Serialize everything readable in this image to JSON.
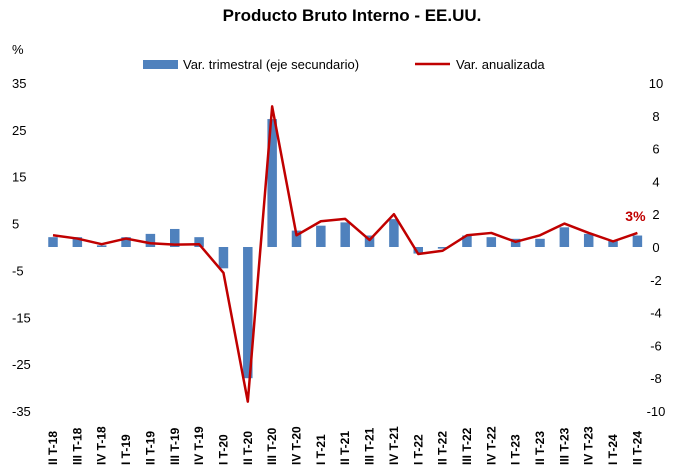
{
  "chart_data": {
    "type": "bar+line",
    "title": "Producto Bruto Interno - EE.UU.",
    "y_left_unit": "%",
    "y_left_ticks": [
      35,
      25,
      15,
      5,
      -5,
      -15,
      -25,
      -35
    ],
    "y_left_range": [
      -35,
      35
    ],
    "y_right_ticks": [
      10,
      8,
      6,
      4,
      2,
      0,
      -2,
      -4,
      -6,
      -8,
      -10
    ],
    "y_right_range": [
      -10,
      10
    ],
    "categories": [
      "II T-18",
      "III T-18",
      "IV T-18",
      "I T-19",
      "II T-19",
      "III T-19",
      "IV T-19",
      "I T-20",
      "II T-20",
      "III T-20",
      "IV T-20",
      "I T-21",
      "II T-21",
      "III T-21",
      "IV T-21",
      "I T-22",
      "II T-22",
      "III T-22",
      "IV T-22",
      "I T-23",
      "II T-23",
      "III T-23",
      "IV T-23",
      "I T-24",
      "II T-24"
    ],
    "series": [
      {
        "name": "Var. trimestral (eje secundario)",
        "type": "bar",
        "axis": "right",
        "color": "#4f81bd",
        "values": [
          0.6,
          0.6,
          0.1,
          0.6,
          0.8,
          1.1,
          0.6,
          -1.3,
          -8.0,
          7.8,
          1.0,
          1.3,
          1.5,
          0.7,
          1.7,
          -0.4,
          -0.1,
          0.7,
          0.6,
          0.5,
          0.5,
          1.2,
          0.8,
          0.4,
          0.7
        ]
      },
      {
        "name": "Var. anualizada",
        "type": "line",
        "axis": "left",
        "color": "#c00000",
        "values": [
          2.5,
          1.8,
          0.6,
          1.8,
          0.8,
          0.5,
          0.6,
          -5.5,
          -33.0,
          30.0,
          2.5,
          5.5,
          6.0,
          1.5,
          7.0,
          -1.5,
          -0.8,
          2.5,
          3.0,
          1.1,
          2.5,
          5.0,
          3.0,
          1.2,
          3.0
        ]
      }
    ],
    "annotation": {
      "text": "3%",
      "category": "II T-24",
      "color": "#c00000"
    },
    "legend_position": "top"
  }
}
